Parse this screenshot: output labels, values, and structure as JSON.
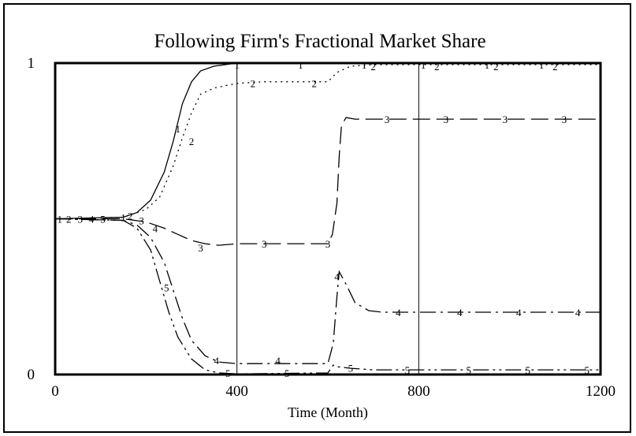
{
  "chart_data": {
    "type": "line",
    "title": "Following Firm's Fractional Market Share",
    "xlabel": "Time (Month)",
    "ylabel": "",
    "xlim": [
      0,
      1200
    ],
    "ylim": [
      0,
      1
    ],
    "xticks": [
      "0",
      "400",
      "800",
      "1200"
    ],
    "yticks": [
      "0",
      "1"
    ],
    "vlines": [
      400,
      800
    ],
    "grid": false,
    "legend": "none",
    "series": [
      {
        "name": "1",
        "dash": "solid",
        "points": [
          [
            0,
            0.5
          ],
          [
            150,
            0.505
          ],
          [
            180,
            0.52
          ],
          [
            210,
            0.56
          ],
          [
            240,
            0.65
          ],
          [
            260,
            0.75
          ],
          [
            280,
            0.87
          ],
          [
            300,
            0.94
          ],
          [
            320,
            0.975
          ],
          [
            350,
            0.99
          ],
          [
            400,
            1.0
          ],
          [
            1200,
            1.0
          ]
        ],
        "markers": [
          [
            10,
            0.5
          ],
          [
            150,
            0.505
          ],
          [
            270,
            0.79
          ],
          [
            400,
            0.995
          ],
          [
            540,
            0.995
          ],
          [
            680,
            0.995
          ],
          [
            810,
            0.995
          ],
          [
            950,
            0.995
          ],
          [
            1070,
            0.995
          ]
        ]
      },
      {
        "name": "2",
        "dash": "2,5",
        "points": [
          [
            0,
            0.5
          ],
          [
            150,
            0.505
          ],
          [
            200,
            0.53
          ],
          [
            230,
            0.57
          ],
          [
            260,
            0.67
          ],
          [
            280,
            0.76
          ],
          [
            300,
            0.84
          ],
          [
            320,
            0.9
          ],
          [
            350,
            0.92
          ],
          [
            400,
            0.935
          ],
          [
            460,
            0.94
          ],
          [
            600,
            0.94
          ],
          [
            620,
            0.97
          ],
          [
            650,
            0.99
          ],
          [
            700,
            0.995
          ],
          [
            1200,
            0.995
          ]
        ],
        "markers": [
          [
            30,
            0.5
          ],
          [
            165,
            0.51
          ],
          [
            300,
            0.75
          ],
          [
            435,
            0.935
          ],
          [
            570,
            0.935
          ],
          [
            700,
            0.99
          ],
          [
            840,
            0.99
          ],
          [
            970,
            0.99
          ],
          [
            1100,
            0.99
          ]
        ]
      },
      {
        "name": "3",
        "dash": "22,8",
        "points": [
          [
            0,
            0.5
          ],
          [
            150,
            0.5
          ],
          [
            200,
            0.49
          ],
          [
            240,
            0.47
          ],
          [
            270,
            0.45
          ],
          [
            300,
            0.43
          ],
          [
            330,
            0.42
          ],
          [
            360,
            0.415
          ],
          [
            400,
            0.42
          ],
          [
            600,
            0.42
          ],
          [
            610,
            0.45
          ],
          [
            620,
            0.55
          ],
          [
            625,
            0.7
          ],
          [
            630,
            0.8
          ],
          [
            640,
            0.825
          ],
          [
            660,
            0.82
          ],
          [
            700,
            0.82
          ],
          [
            1200,
            0.82
          ]
        ],
        "markers": [
          [
            55,
            0.5
          ],
          [
            190,
            0.495
          ],
          [
            320,
            0.408
          ],
          [
            460,
            0.42
          ],
          [
            600,
            0.42
          ],
          [
            730,
            0.82
          ],
          [
            860,
            0.82
          ],
          [
            990,
            0.82
          ],
          [
            1120,
            0.82
          ]
        ]
      },
      {
        "name": "4",
        "dash": "20,6,3,6",
        "points": [
          [
            0,
            0.5
          ],
          [
            150,
            0.495
          ],
          [
            180,
            0.48
          ],
          [
            210,
            0.44
          ],
          [
            240,
            0.36
          ],
          [
            260,
            0.27
          ],
          [
            280,
            0.18
          ],
          [
            300,
            0.11
          ],
          [
            330,
            0.06
          ],
          [
            360,
            0.04
          ],
          [
            400,
            0.035
          ],
          [
            600,
            0.035
          ],
          [
            612,
            0.1
          ],
          [
            620,
            0.25
          ],
          [
            625,
            0.33
          ],
          [
            640,
            0.29
          ],
          [
            660,
            0.23
          ],
          [
            690,
            0.205
          ],
          [
            720,
            0.2
          ],
          [
            1200,
            0.2
          ]
        ],
        "markers": [
          [
            80,
            0.5
          ],
          [
            220,
            0.47
          ],
          [
            355,
            0.045
          ],
          [
            490,
            0.045
          ],
          [
            620,
            0.315
          ],
          [
            755,
            0.2
          ],
          [
            890,
            0.2
          ],
          [
            1020,
            0.2
          ],
          [
            1150,
            0.2
          ]
        ]
      },
      {
        "name": "5",
        "dash": "20,5,3,5,3,5",
        "points": [
          [
            0,
            0.5
          ],
          [
            150,
            0.495
          ],
          [
            180,
            0.47
          ],
          [
            210,
            0.4
          ],
          [
            230,
            0.3
          ],
          [
            250,
            0.2
          ],
          [
            270,
            0.12
          ],
          [
            300,
            0.05
          ],
          [
            330,
            0.015
          ],
          [
            360,
            0.005
          ],
          [
            400,
            0.002
          ],
          [
            600,
            0.005
          ],
          [
            612,
            0.03
          ],
          [
            620,
            0.025
          ],
          [
            650,
            0.02
          ],
          [
            700,
            0.015
          ],
          [
            1200,
            0.015
          ]
        ],
        "markers": [
          [
            105,
            0.5
          ],
          [
            245,
            0.28
          ],
          [
            380,
            0.005
          ],
          [
            510,
            0.005
          ],
          [
            650,
            0.022
          ],
          [
            775,
            0.015
          ],
          [
            910,
            0.015
          ],
          [
            1040,
            0.015
          ],
          [
            1170,
            0.015
          ]
        ]
      }
    ]
  }
}
